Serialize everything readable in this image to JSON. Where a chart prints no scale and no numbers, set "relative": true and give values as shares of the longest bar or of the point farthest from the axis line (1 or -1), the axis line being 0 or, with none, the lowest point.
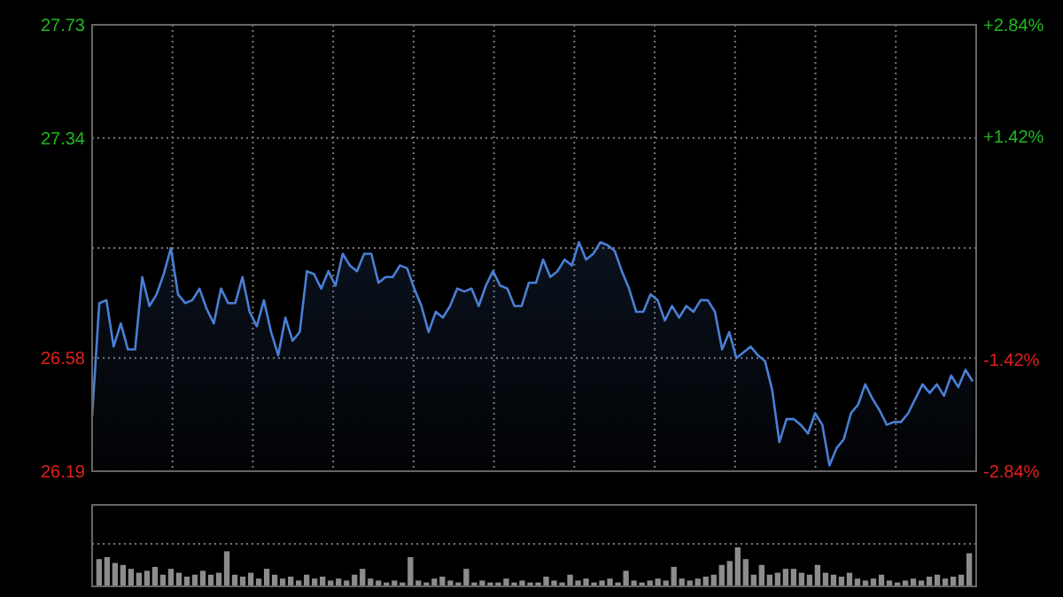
{
  "chart_data": [
    {
      "type": "area",
      "categories": [
        null,
        null,
        null,
        null,
        null,
        null,
        null,
        null,
        null,
        null,
        null,
        null,
        null,
        null,
        null,
        null,
        null,
        null,
        null,
        null,
        null,
        null,
        null,
        null,
        null,
        null,
        null,
        null,
        null,
        null,
        null,
        null,
        null,
        null,
        null,
        null,
        null,
        null,
        null,
        null,
        null,
        null,
        null,
        null,
        null,
        null,
        null,
        null,
        null,
        null,
        null,
        null,
        null,
        null,
        null,
        null,
        null,
        null,
        null,
        null,
        null,
        null,
        null,
        null,
        null,
        null,
        null,
        null,
        null,
        null,
        null,
        null,
        null,
        null,
        null,
        null,
        null,
        null,
        null,
        null,
        null,
        null,
        null,
        null,
        null,
        null,
        null,
        null,
        null,
        null,
        null,
        null,
        null,
        null,
        null,
        null,
        null,
        null,
        null,
        null,
        null,
        null,
        null,
        null,
        null,
        null,
        null,
        null,
        null,
        null,
        null,
        null,
        null,
        null,
        null,
        null,
        null,
        null,
        null,
        null,
        null,
        null,
        null,
        null
      ],
      "ylim": [
        26.19,
        27.73
      ],
      "yticks": [
        26.19,
        26.58,
        {
          "value": 26.96,
          "label": null
        },
        27.34,
        27.73
      ],
      "y2lim": [
        -2.84,
        2.84
      ],
      "y2ticks": [
        {
          "value": -2.84,
          "label": "-2.84%"
        },
        {
          "value": -1.42,
          "label": "-1.42%"
        },
        {
          "value": 1.42,
          "label": "+1.42%"
        },
        {
          "value": 2.84,
          "label": "+2.84%"
        }
      ],
      "grid": true,
      "series": [
        {
          "color": "#4a7fd4",
          "values": [
            26.38,
            26.77,
            26.78,
            26.62,
            26.7,
            26.61,
            26.61,
            26.86,
            26.76,
            26.8,
            26.87,
            26.96,
            26.8,
            26.77,
            26.78,
            26.82,
            26.75,
            26.7,
            26.82,
            26.77,
            26.77,
            26.86,
            26.74,
            26.69,
            26.78,
            26.67,
            26.59,
            26.72,
            26.64,
            26.67,
            26.88,
            26.87,
            26.82,
            26.88,
            26.83,
            26.94,
            26.9,
            26.88,
            26.94,
            26.94,
            26.84,
            26.86,
            26.86,
            26.9,
            26.89,
            26.82,
            26.76,
            26.67,
            26.74,
            26.72,
            26.76,
            26.82,
            26.81,
            26.82,
            26.76,
            26.83,
            26.88,
            26.83,
            26.82,
            26.76,
            26.76,
            26.84,
            26.84,
            26.92,
            26.86,
            26.88,
            26.92,
            26.9,
            26.98,
            26.92,
            26.94,
            26.98,
            26.97,
            26.95,
            26.88,
            26.82,
            26.74,
            26.74,
            26.8,
            26.78,
            26.71,
            26.76,
            26.72,
            26.76,
            26.74,
            26.78,
            26.78,
            26.74,
            26.61,
            26.67,
            26.58,
            26.6,
            26.62,
            26.59,
            26.57,
            26.47,
            26.29,
            26.37,
            26.37,
            26.35,
            26.32,
            26.39,
            26.35,
            26.21,
            26.27,
            26.3,
            26.39,
            26.42,
            26.49,
            26.44,
            26.4,
            26.35,
            26.36,
            26.36,
            26.39,
            26.44,
            26.49,
            26.46,
            26.49,
            26.45,
            26.52,
            26.48,
            26.54,
            26.5
          ]
        }
      ]
    },
    {
      "type": "bar",
      "relative": true,
      "color": "#8c8c8c",
      "categories": [
        null,
        null,
        null,
        null,
        null,
        null,
        null,
        null,
        null,
        null,
        null,
        null,
        null,
        null,
        null,
        null,
        null,
        null,
        null,
        null,
        null,
        null,
        null,
        null,
        null,
        null,
        null,
        null,
        null,
        null,
        null,
        null,
        null,
        null,
        null,
        null,
        null,
        null,
        null,
        null,
        null,
        null,
        null,
        null,
        null,
        null,
        null,
        null,
        null,
        null,
        null,
        null,
        null,
        null,
        null,
        null,
        null,
        null,
        null,
        null,
        null,
        null,
        null,
        null,
        null,
        null,
        null,
        null,
        null,
        null,
        null,
        null,
        null,
        null,
        null,
        null,
        null,
        null,
        null,
        null,
        null,
        null,
        null,
        null,
        null,
        null,
        null,
        null,
        null,
        null,
        null,
        null,
        null,
        null,
        null,
        null,
        null,
        null,
        null,
        null,
        null,
        null,
        null,
        null,
        null,
        null,
        null,
        null,
        null,
        null
      ],
      "values": [
        0.7,
        0.75,
        0.6,
        0.55,
        0.45,
        0.35,
        0.4,
        0.5,
        0.3,
        0.45,
        0.35,
        0.25,
        0.3,
        0.4,
        0.3,
        0.35,
        0.9,
        0.3,
        0.25,
        0.35,
        0.2,
        0.45,
        0.3,
        0.2,
        0.25,
        0.15,
        0.3,
        0.2,
        0.25,
        0.15,
        0.2,
        0.15,
        0.3,
        0.45,
        0.2,
        0.15,
        0.1,
        0.15,
        0.1,
        0.75,
        0.15,
        0.1,
        0.2,
        0.25,
        0.15,
        0.1,
        0.45,
        0.1,
        0.15,
        0.1,
        0.1,
        0.2,
        0.1,
        0.15,
        0.1,
        0.1,
        0.25,
        0.15,
        0.1,
        0.3,
        0.15,
        0.2,
        0.1,
        0.15,
        0.2,
        0.1,
        0.4,
        0.15,
        0.1,
        0.15,
        0.2,
        0.15,
        0.5,
        0.2,
        0.15,
        0.2,
        0.25,
        0.3,
        0.55,
        0.65,
        1.0,
        0.7,
        0.3,
        0.55,
        0.3,
        0.35,
        0.45,
        0.45,
        0.35,
        0.3,
        0.55,
        0.35,
        0.3,
        0.25,
        0.35,
        0.2,
        0.15,
        0.2,
        0.3,
        0.15,
        0.1,
        0.15,
        0.2,
        0.15,
        0.25,
        0.3,
        0.2,
        0.25,
        0.3,
        0.85
      ]
    }
  ]
}
